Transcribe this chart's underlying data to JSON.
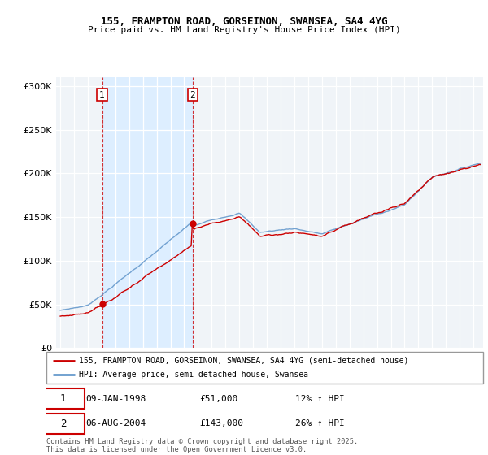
{
  "title": "155, FRAMPTON ROAD, GORSEINON, SWANSEA, SA4 4YG",
  "subtitle": "Price paid vs. HM Land Registry's House Price Index (HPI)",
  "legend_line1": "155, FRAMPTON ROAD, GORSEINON, SWANSEA, SA4 4YG (semi-detached house)",
  "legend_line2": "HPI: Average price, semi-detached house, Swansea",
  "sale1_date": "09-JAN-1998",
  "sale1_price": 51000,
  "sale1_hpi": "12% ↑ HPI",
  "sale2_date": "06-AUG-2004",
  "sale2_price": 143000,
  "sale2_hpi": "26% ↑ HPI",
  "footer": "Contains HM Land Registry data © Crown copyright and database right 2025.\nThis data is licensed under the Open Government Licence v3.0.",
  "property_color": "#cc0000",
  "hpi_color": "#6699cc",
  "shade_color": "#ddeeff",
  "background_color": "#f0f4f8",
  "ylim": [
    0,
    310000
  ],
  "xlim_start": 1994.7,
  "xlim_end": 2025.7,
  "sale1_year": 1998.04,
  "sale2_year": 2004.6
}
